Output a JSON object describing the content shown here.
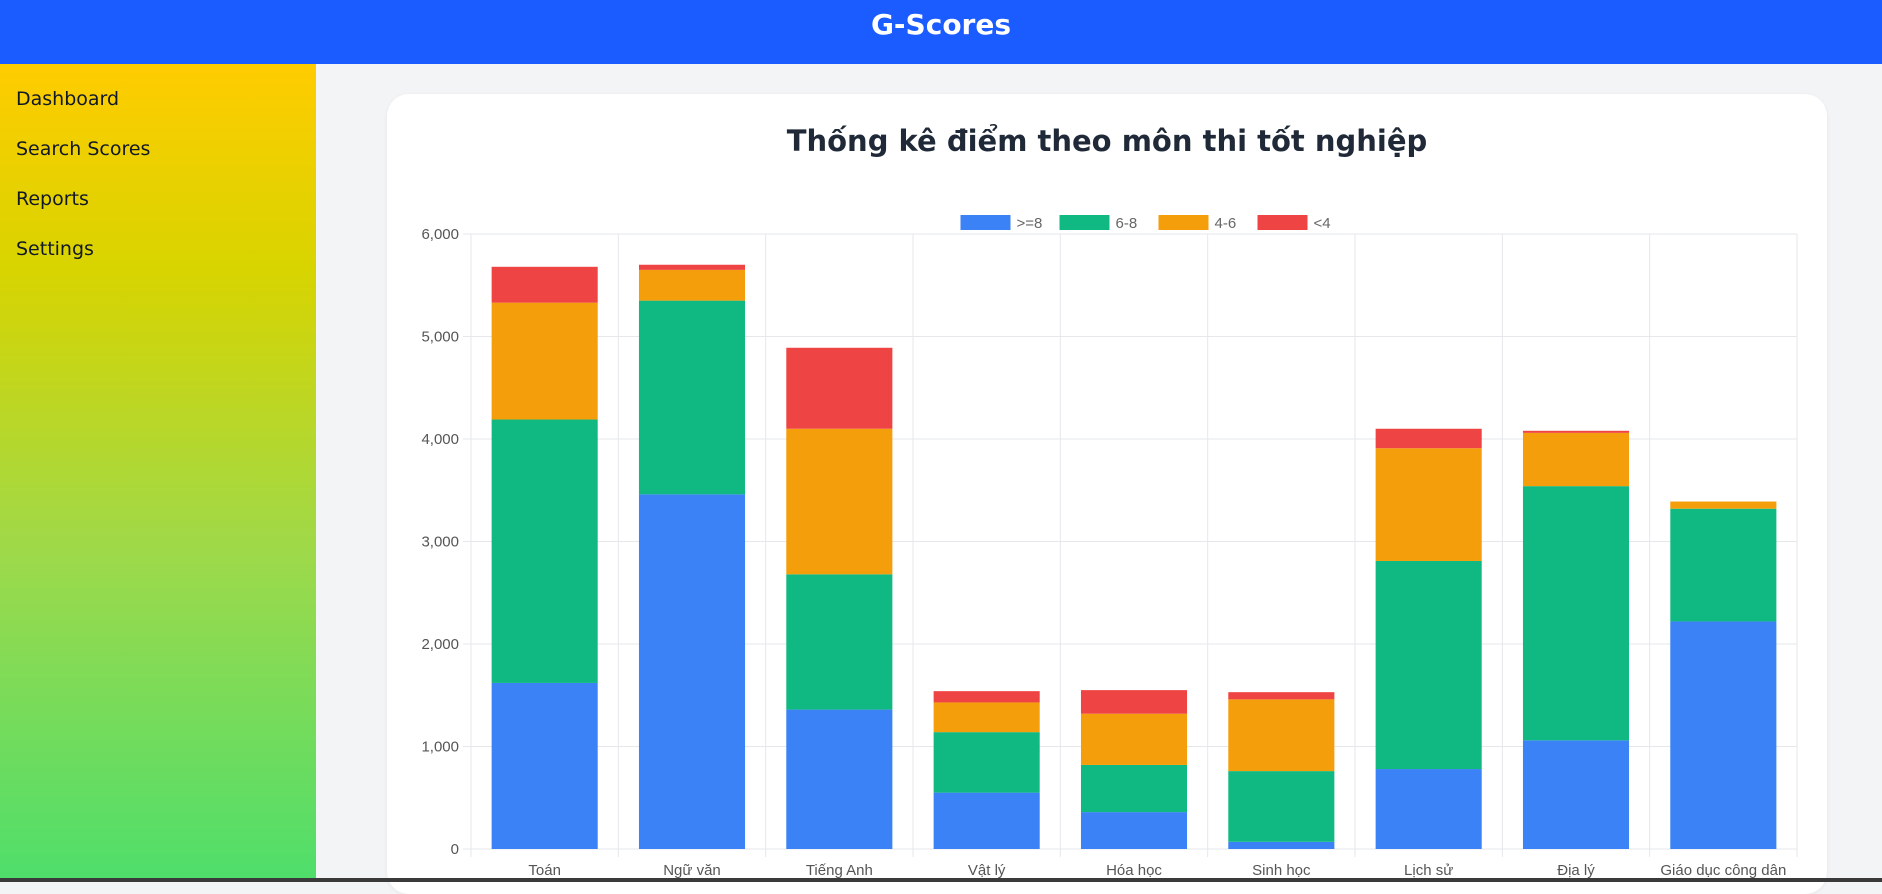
{
  "header": {
    "title": "G-Scores"
  },
  "sidebar": {
    "items": [
      {
        "label": "Dashboard"
      },
      {
        "label": "Search Scores"
      },
      {
        "label": "Reports"
      },
      {
        "label": "Settings"
      }
    ]
  },
  "chart_data": {
    "type": "bar",
    "stacked": true,
    "title": "Thống kê điểm theo môn thi tốt nghiệp",
    "categories": [
      "Toán",
      "Ngữ văn",
      "Tiếng Anh",
      "Vật lý",
      "Hóa học",
      "Sinh học",
      "Lịch sử",
      "Địa lý",
      "Giáo dục công dân"
    ],
    "series": [
      {
        "name": ">=8",
        "color": "#3b82f6",
        "values": [
          1620,
          3460,
          1360,
          550,
          360,
          70,
          780,
          1060,
          2220
        ]
      },
      {
        "name": "6-8",
        "color": "#10b981",
        "values": [
          2570,
          1890,
          1320,
          590,
          460,
          690,
          2030,
          2480,
          1100
        ]
      },
      {
        "name": "4-6",
        "color": "#f59e0b",
        "values": [
          1140,
          300,
          1420,
          290,
          500,
          700,
          1100,
          520,
          70
        ]
      },
      {
        "name": "<4",
        "color": "#ef4444",
        "values": [
          350,
          50,
          790,
          110,
          230,
          70,
          190,
          20,
          0
        ]
      }
    ],
    "ylim": [
      0,
      6000
    ],
    "yticks": [
      "0",
      "1,000",
      "2,000",
      "3,000",
      "4,000",
      "5,000",
      "6,000"
    ],
    "grid": true,
    "legend_position": "top-center"
  }
}
